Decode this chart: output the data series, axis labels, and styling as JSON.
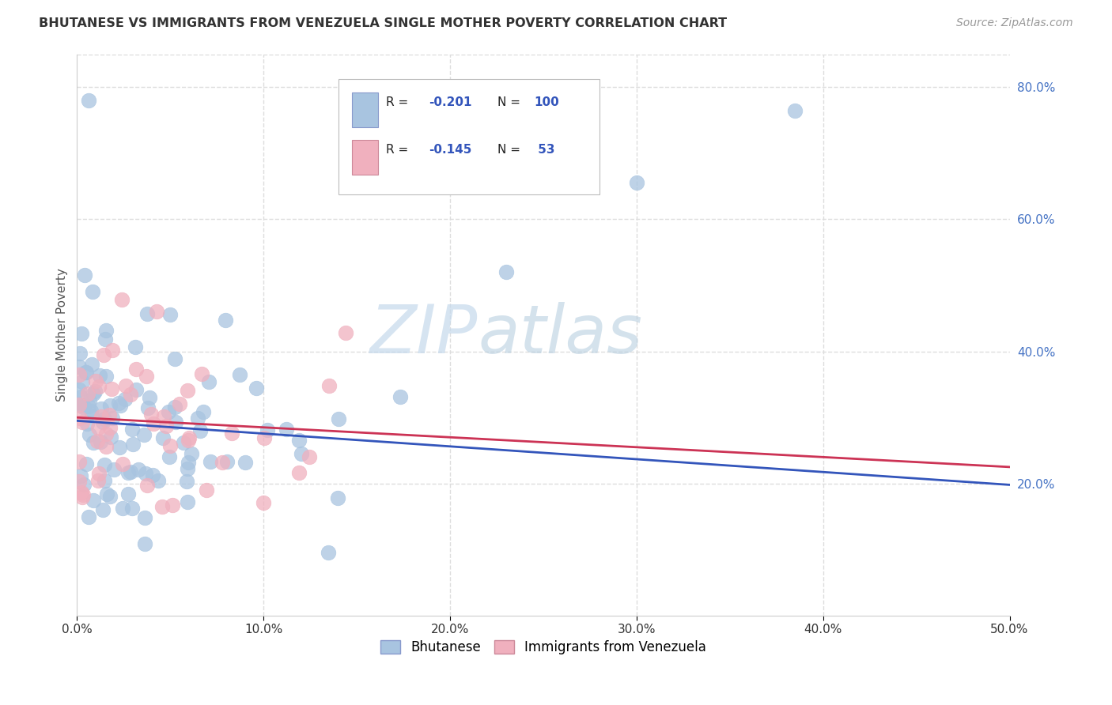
{
  "title": "BHUTANESE VS IMMIGRANTS FROM VENEZUELA SINGLE MOTHER POVERTY CORRELATION CHART",
  "source": "Source: ZipAtlas.com",
  "ylabel": "Single Mother Poverty",
  "watermark_part1": "ZIP",
  "watermark_part2": "atlas",
  "series1_name": "Bhutanese",
  "series2_name": "Immigrants from Venezuela",
  "series1_color": "#a8c4e0",
  "series2_color": "#f0b0be",
  "series1_line_color": "#3355bb",
  "series2_line_color": "#cc3355",
  "series1_R": -0.201,
  "series1_N": 100,
  "series2_R": -0.145,
  "series2_N": 53,
  "xlim": [
    0.0,
    0.5
  ],
  "ylim": [
    0.0,
    0.85
  ],
  "xticks": [
    0.0,
    0.1,
    0.2,
    0.3,
    0.4,
    0.5
  ],
  "xtick_labels": [
    "0.0%",
    "10.0%",
    "20.0%",
    "30.0%",
    "40.0%",
    "50.0%"
  ],
  "yticks_right": [
    0.2,
    0.4,
    0.6,
    0.8
  ],
  "ytick_labels_right": [
    "20.0%",
    "40.0%",
    "60.0%",
    "80.0%"
  ],
  "line1_start": 0.295,
  "line1_end": 0.198,
  "line2_start": 0.3,
  "line2_end": 0.225,
  "background_color": "#ffffff",
  "grid_color": "#dddddd",
  "title_color": "#333333",
  "axis_label_color": "#555555",
  "right_axis_color": "#4472c4"
}
